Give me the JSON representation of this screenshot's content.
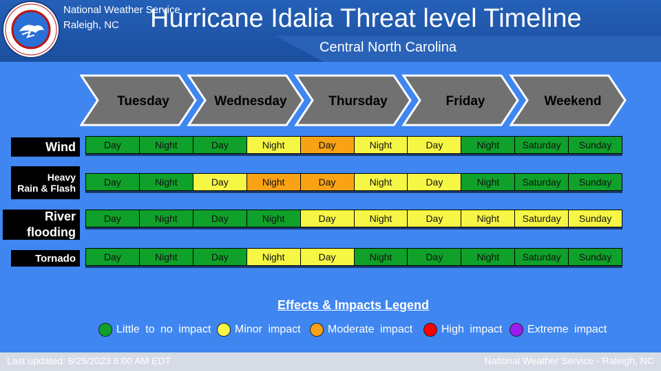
{
  "header": {
    "office_line1": "National Weather Service",
    "office_line2": "Raleigh, NC",
    "title": "Hurricane Idalia Threat level Timeline",
    "subtitle": "Central North Carolina",
    "logo_text": "NATIONAL WEATHER SERVICE"
  },
  "days": [
    "Tuesday",
    "Wednesday",
    "Thursday",
    "Friday",
    "Weekend"
  ],
  "colors": {
    "green": "#0fa12a",
    "yellow": "#f6f645",
    "orange": "#f9a215",
    "red": "#ff0000",
    "purple": "#9b1cf0"
  },
  "rows": [
    {
      "label": [
        "Wind"
      ],
      "cells": [
        {
          "text": "Day",
          "level": "green"
        },
        {
          "text": "Night",
          "level": "green"
        },
        {
          "text": "Day",
          "level": "green"
        },
        {
          "text": "Night",
          "level": "yellow"
        },
        {
          "text": "Day",
          "level": "orange"
        },
        {
          "text": "Night",
          "level": "yellow"
        },
        {
          "text": "Day",
          "level": "yellow"
        },
        {
          "text": "Night",
          "level": "green"
        },
        {
          "text": "Saturday",
          "level": "green"
        },
        {
          "text": "Sunday",
          "level": "green"
        }
      ]
    },
    {
      "label": [
        "Heavy",
        "Rain & Flash"
      ],
      "cells": [
        {
          "text": "Day",
          "level": "green"
        },
        {
          "text": "Night",
          "level": "green"
        },
        {
          "text": "Day",
          "level": "yellow"
        },
        {
          "text": "Night",
          "level": "orange"
        },
        {
          "text": "Day",
          "level": "orange"
        },
        {
          "text": "Night",
          "level": "yellow"
        },
        {
          "text": "Day",
          "level": "yellow"
        },
        {
          "text": "Night",
          "level": "green"
        },
        {
          "text": "Saturday",
          "level": "green"
        },
        {
          "text": "Sunday",
          "level": "green"
        }
      ]
    },
    {
      "label": [
        "River",
        "flooding"
      ],
      "cells": [
        {
          "text": "Day",
          "level": "green"
        },
        {
          "text": "Night",
          "level": "green"
        },
        {
          "text": "Day",
          "level": "green"
        },
        {
          "text": "Night",
          "level": "green"
        },
        {
          "text": "Day",
          "level": "yellow"
        },
        {
          "text": "Night",
          "level": "yellow"
        },
        {
          "text": "Day",
          "level": "yellow"
        },
        {
          "text": "Night",
          "level": "yellow"
        },
        {
          "text": "Saturday",
          "level": "yellow"
        },
        {
          "text": "Sunday",
          "level": "yellow"
        }
      ]
    },
    {
      "label": [
        "Tornado"
      ],
      "cells": [
        {
          "text": "Day",
          "level": "green"
        },
        {
          "text": "Night",
          "level": "green"
        },
        {
          "text": "Day",
          "level": "green"
        },
        {
          "text": "Night",
          "level": "yellow"
        },
        {
          "text": "Day",
          "level": "yellow"
        },
        {
          "text": "Night",
          "level": "green"
        },
        {
          "text": "Day",
          "level": "green"
        },
        {
          "text": "Night",
          "level": "green"
        },
        {
          "text": "Saturday",
          "level": "green"
        },
        {
          "text": "Sunday",
          "level": "green"
        }
      ]
    }
  ],
  "legend": {
    "title": "Effects & Impacts Legend",
    "items": [
      {
        "label": "Little to no impact",
        "color": "#0fa12a"
      },
      {
        "label": "Minor impact",
        "color": "#f6f645"
      },
      {
        "label": "Moderate impact",
        "color": "#f9a215"
      },
      {
        "label": "High impact",
        "color": "#ff0000"
      },
      {
        "label": "Extreme impact",
        "color": "#9b1cf0"
      }
    ]
  },
  "footer": {
    "updated": "Last updated: 8/29/2023 6:00 AM EDT",
    "source": "National Weather Service - Raleigh, NC"
  }
}
